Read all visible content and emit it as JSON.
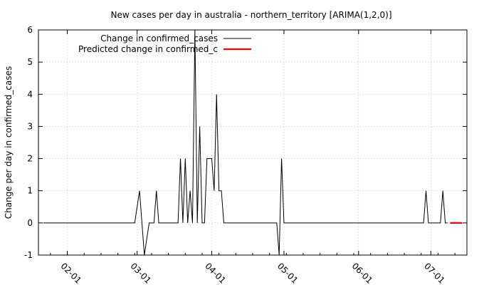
{
  "chart_data": {
    "type": "line",
    "title": "New cases per day in australia - northern_territory [ARIMA(1,2,0)]",
    "ylabel": "Change per day in confirmed_cases",
    "xlabel": "",
    "ylim": [
      -1,
      6
    ],
    "yticks": [
      "-1",
      "0",
      "1",
      "2",
      "3",
      "4",
      "5",
      "6"
    ],
    "xticks": [
      {
        "label": "02-01",
        "date": "2020-02-01"
      },
      {
        "label": "03-01",
        "date": "2020-03-01"
      },
      {
        "label": "04-01",
        "date": "2020-04-01"
      },
      {
        "label": "05-01",
        "date": "2020-05-01"
      },
      {
        "label": "06-01",
        "date": "2020-06-01"
      },
      {
        "label": "07-01",
        "date": "2020-07-01"
      }
    ],
    "xlim": [
      "2020-01-20",
      "2020-07-16"
    ],
    "legend": {
      "position": "top-left",
      "entries": [
        "Change in confirmed_cases",
        "Predicted change in confirmed_c"
      ]
    },
    "series": [
      {
        "name": "Change in confirmed_cases",
        "color": "#000000",
        "points": [
          [
            "2020-01-22",
            0
          ],
          [
            "2020-02-29",
            0
          ],
          [
            "2020-03-02",
            1
          ],
          [
            "2020-03-04",
            -1
          ],
          [
            "2020-03-06",
            0
          ],
          [
            "2020-03-08",
            0
          ],
          [
            "2020-03-09",
            1
          ],
          [
            "2020-03-10",
            0
          ],
          [
            "2020-03-18",
            0
          ],
          [
            "2020-03-19",
            2
          ],
          [
            "2020-03-20",
            0
          ],
          [
            "2020-03-21",
            2
          ],
          [
            "2020-03-22",
            0
          ],
          [
            "2020-03-23",
            1
          ],
          [
            "2020-03-24",
            0
          ],
          [
            "2020-03-25",
            6
          ],
          [
            "2020-03-26",
            0
          ],
          [
            "2020-03-27",
            3
          ],
          [
            "2020-03-28",
            0
          ],
          [
            "2020-03-29",
            0
          ],
          [
            "2020-03-30",
            2
          ],
          [
            "2020-04-01",
            2
          ],
          [
            "2020-04-02",
            1
          ],
          [
            "2020-04-03",
            4
          ],
          [
            "2020-04-04",
            1
          ],
          [
            "2020-04-05",
            1
          ],
          [
            "2020-04-06",
            0
          ],
          [
            "2020-04-28",
            0
          ],
          [
            "2020-04-29",
            -1
          ],
          [
            "2020-04-30",
            2
          ],
          [
            "2020-05-01",
            0
          ],
          [
            "2020-06-28",
            0
          ],
          [
            "2020-06-29",
            1
          ],
          [
            "2020-06-30",
            0
          ],
          [
            "2020-07-05",
            0
          ],
          [
            "2020-07-06",
            1
          ],
          [
            "2020-07-07",
            0
          ],
          [
            "2020-07-08",
            0
          ]
        ]
      },
      {
        "name": "Predicted change in confirmed_c",
        "color": "#ff0000",
        "points": [
          [
            "2020-07-09",
            0
          ],
          [
            "2020-07-14",
            0
          ]
        ]
      }
    ]
  }
}
